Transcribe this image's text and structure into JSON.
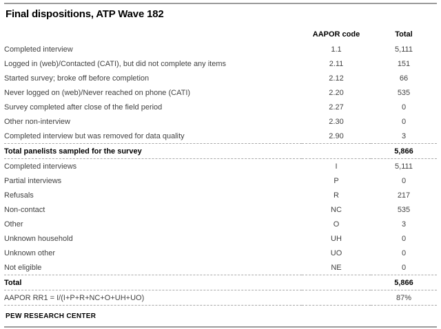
{
  "page_title": "Final dispositions, ATP Wave 182",
  "footer": {
    "source": "PEW RESEARCH CENTER"
  },
  "colors": {
    "title_text": "#000000",
    "body_text": "#404040",
    "rule_solid": "#9a9a9a",
    "rule_dashed": "#a8a8a8",
    "background": "#ffffff"
  },
  "chart_data": {
    "type": "table",
    "title": "Final dispositions, ATP Wave 182",
    "columns": [
      "",
      "AAPOR code",
      "Total"
    ],
    "rows": [
      {
        "label": "Completed interview",
        "code": "1.1",
        "total": "5,111",
        "emphasis": false,
        "separator": "none"
      },
      {
        "label": "Logged in (web)/Contacted (CATI), but did not complete any items",
        "code": "2.11",
        "total": "151",
        "emphasis": false,
        "separator": "none"
      },
      {
        "label": "Started survey; broke off before completion",
        "code": "2.12",
        "total": "66",
        "emphasis": false,
        "separator": "none"
      },
      {
        "label": "Never logged on (web)/Never reached on phone (CATI)",
        "code": "2.20",
        "total": "535",
        "emphasis": false,
        "separator": "none"
      },
      {
        "label": "Survey completed after close of the field period",
        "code": "2.27",
        "total": "0",
        "emphasis": false,
        "separator": "none"
      },
      {
        "label": "Other non-interview",
        "code": "2.30",
        "total": "0",
        "emphasis": false,
        "separator": "none"
      },
      {
        "label": "Completed interview but was removed for data quality",
        "code": "2.90",
        "total": "3",
        "emphasis": false,
        "separator": "none"
      },
      {
        "label": "Total panelists sampled for the survey",
        "code": "",
        "total": "5,866",
        "emphasis": true,
        "separator": "both"
      },
      {
        "label": "Completed interviews",
        "code": "I",
        "total": "5,111",
        "emphasis": false,
        "separator": "none"
      },
      {
        "label": "Partial interviews",
        "code": "P",
        "total": "0",
        "emphasis": false,
        "separator": "none"
      },
      {
        "label": "Refusals",
        "code": "R",
        "total": "217",
        "emphasis": false,
        "separator": "none"
      },
      {
        "label": "Non-contact",
        "code": "NC",
        "total": "535",
        "emphasis": false,
        "separator": "none"
      },
      {
        "label": "Other",
        "code": "O",
        "total": "3",
        "emphasis": false,
        "separator": "none"
      },
      {
        "label": "Unknown household",
        "code": "UH",
        "total": "0",
        "emphasis": false,
        "separator": "none"
      },
      {
        "label": "Unknown other",
        "code": "UO",
        "total": "0",
        "emphasis": false,
        "separator": "none"
      },
      {
        "label": "Not eligible",
        "code": "NE",
        "total": "0",
        "emphasis": false,
        "separator": "none"
      },
      {
        "label": "Total",
        "code": "",
        "total": "5,866",
        "emphasis": true,
        "separator": "both"
      },
      {
        "label": "AAPOR RR1 = I/(I+P+R+NC+O+UH+UO)",
        "code": "",
        "total": "87%",
        "emphasis": false,
        "separator": "bottom"
      }
    ],
    "source": "PEW RESEARCH CENTER",
    "layout": {
      "grid": "off",
      "code_column_align": "center",
      "total_column_align": "center"
    }
  }
}
